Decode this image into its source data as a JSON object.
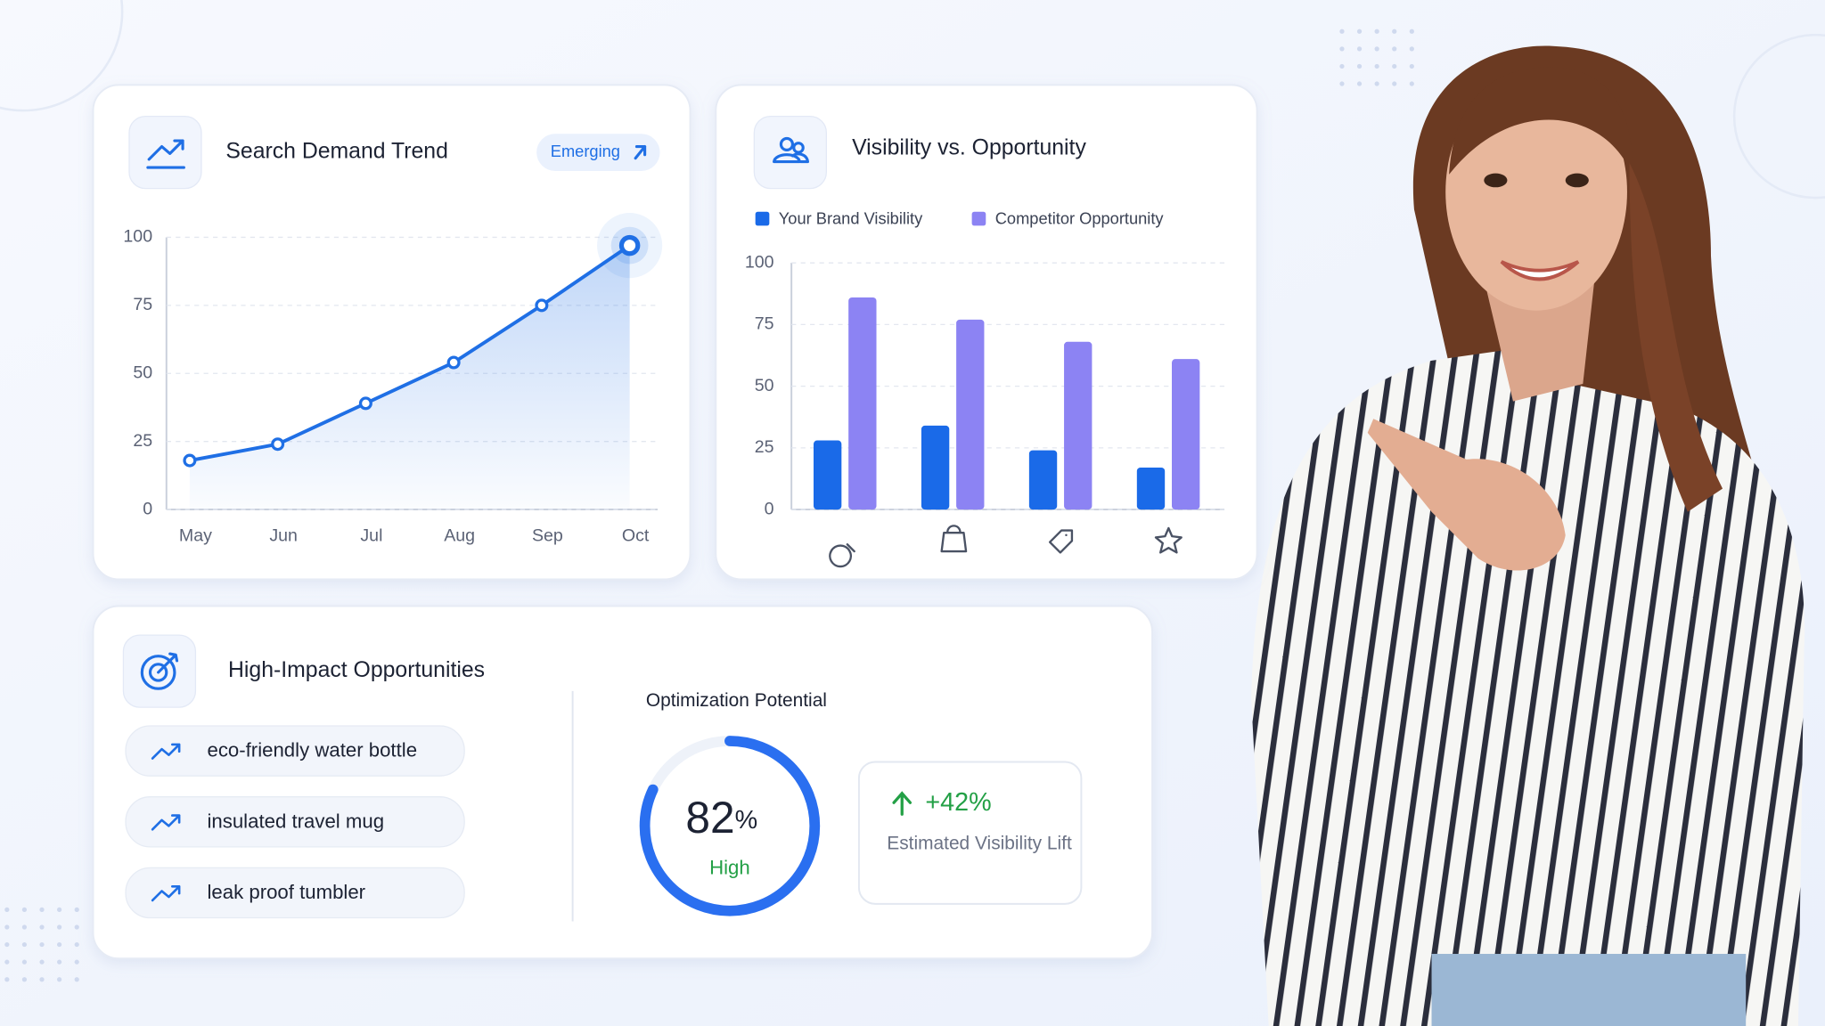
{
  "chart_data": [
    {
      "type": "line",
      "title": "Search Demand Trend",
      "badge": "Emerging",
      "categories": [
        "May",
        "Jun",
        "Jul",
        "Aug",
        "Sep",
        "Oct"
      ],
      "series": [
        {
          "color": "#1f6fe5",
          "values": [
            18,
            24,
            39,
            54,
            75,
            97
          ]
        }
      ],
      "ylim": [
        0,
        100
      ],
      "yticks": [
        0,
        25,
        50,
        75,
        100
      ],
      "grid": true
    },
    {
      "type": "bar",
      "title": "Visibility vs. Opportunity",
      "categories": [
        null,
        null,
        null,
        null
      ],
      "series": [
        {
          "name": "Your Brand Visibility",
          "color": "#1a6ae8",
          "values": [
            28,
            34,
            24,
            17
          ]
        },
        {
          "name": "Competitor Opportunity",
          "color": "#8c83f3",
          "values": [
            86,
            77,
            68,
            61
          ]
        }
      ],
      "ylim": [
        0,
        100
      ],
      "yticks": [
        0,
        25,
        50,
        75,
        100
      ],
      "grid": true,
      "legend": "top"
    }
  ],
  "opportunities": {
    "title": "High-Impact Opportunities",
    "items": [
      "eco-friendly water bottle",
      "insulated travel mug",
      "leak proof tumbler"
    ]
  },
  "potential": {
    "title": "Optimization Potential",
    "value": 82,
    "unit": "%",
    "rating": "High",
    "lift": "+42%",
    "lift_label": "Estimated Visibility Lift"
  }
}
